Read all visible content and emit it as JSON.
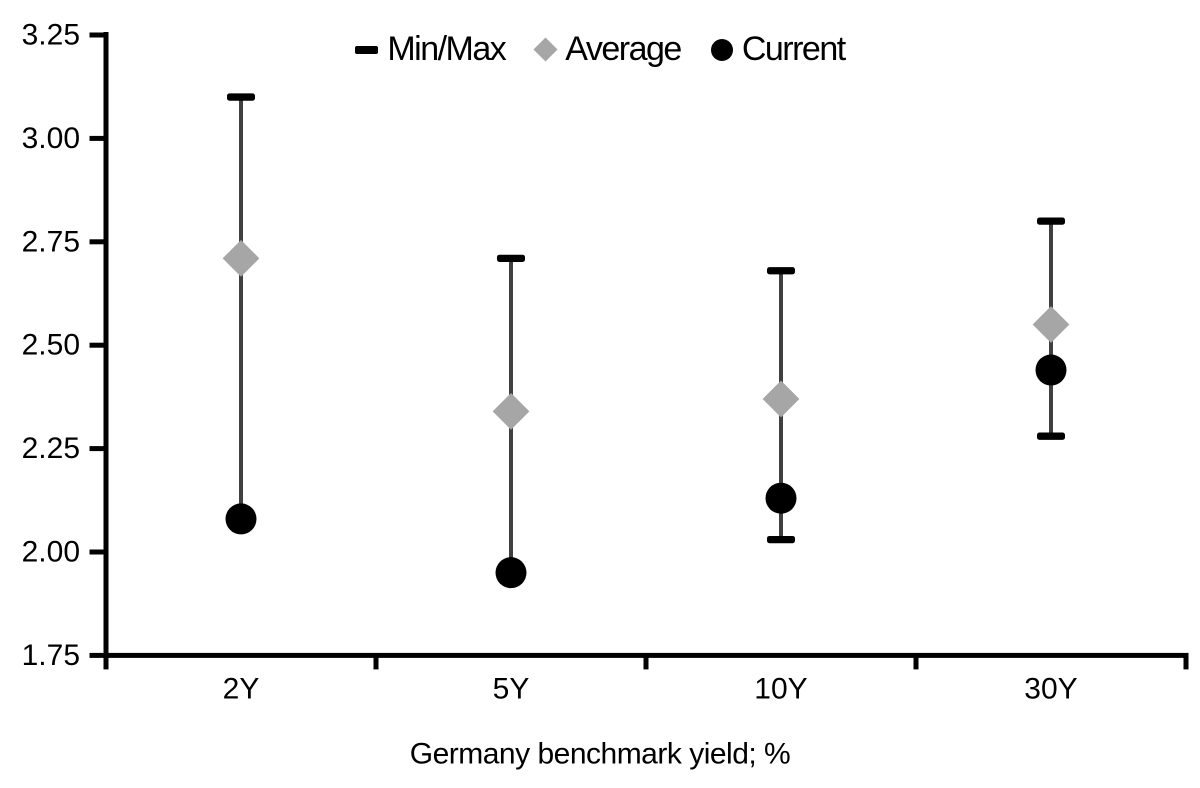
{
  "chart_data": {
    "type": "scatter",
    "subtype": "min-max-range-with-average-and-current",
    "title": "",
    "xlabel": "Germany benchmark yield; %",
    "ylabel": "",
    "categories": [
      "2Y",
      "5Y",
      "10Y",
      "30Y"
    ],
    "ylim": [
      1.75,
      3.25
    ],
    "ytick_step": 0.25,
    "y_tick_labels": [
      "3.25",
      "3.00",
      "2.75",
      "2.50",
      "2.25",
      "2.00",
      "1.75"
    ],
    "grid": false,
    "legend_position": "top-center",
    "series": [
      {
        "name": "Min/Max",
        "role": "range",
        "marker": "dash",
        "min": [
          2.08,
          1.95,
          2.03,
          2.28
        ],
        "max": [
          3.1,
          2.71,
          2.68,
          2.8
        ]
      },
      {
        "name": "Average",
        "role": "point",
        "marker": "diamond",
        "values": [
          2.71,
          2.34,
          2.37,
          2.55
        ]
      },
      {
        "name": "Current",
        "role": "point",
        "marker": "circle",
        "values": [
          2.08,
          1.95,
          2.13,
          2.44
        ]
      }
    ],
    "colors": {
      "background": "#ffffff",
      "axis": "#000000",
      "text": "#000000",
      "range_line": "#404040",
      "range_cap": "#000000",
      "average": "#a6a6a6",
      "current": "#000000"
    }
  }
}
